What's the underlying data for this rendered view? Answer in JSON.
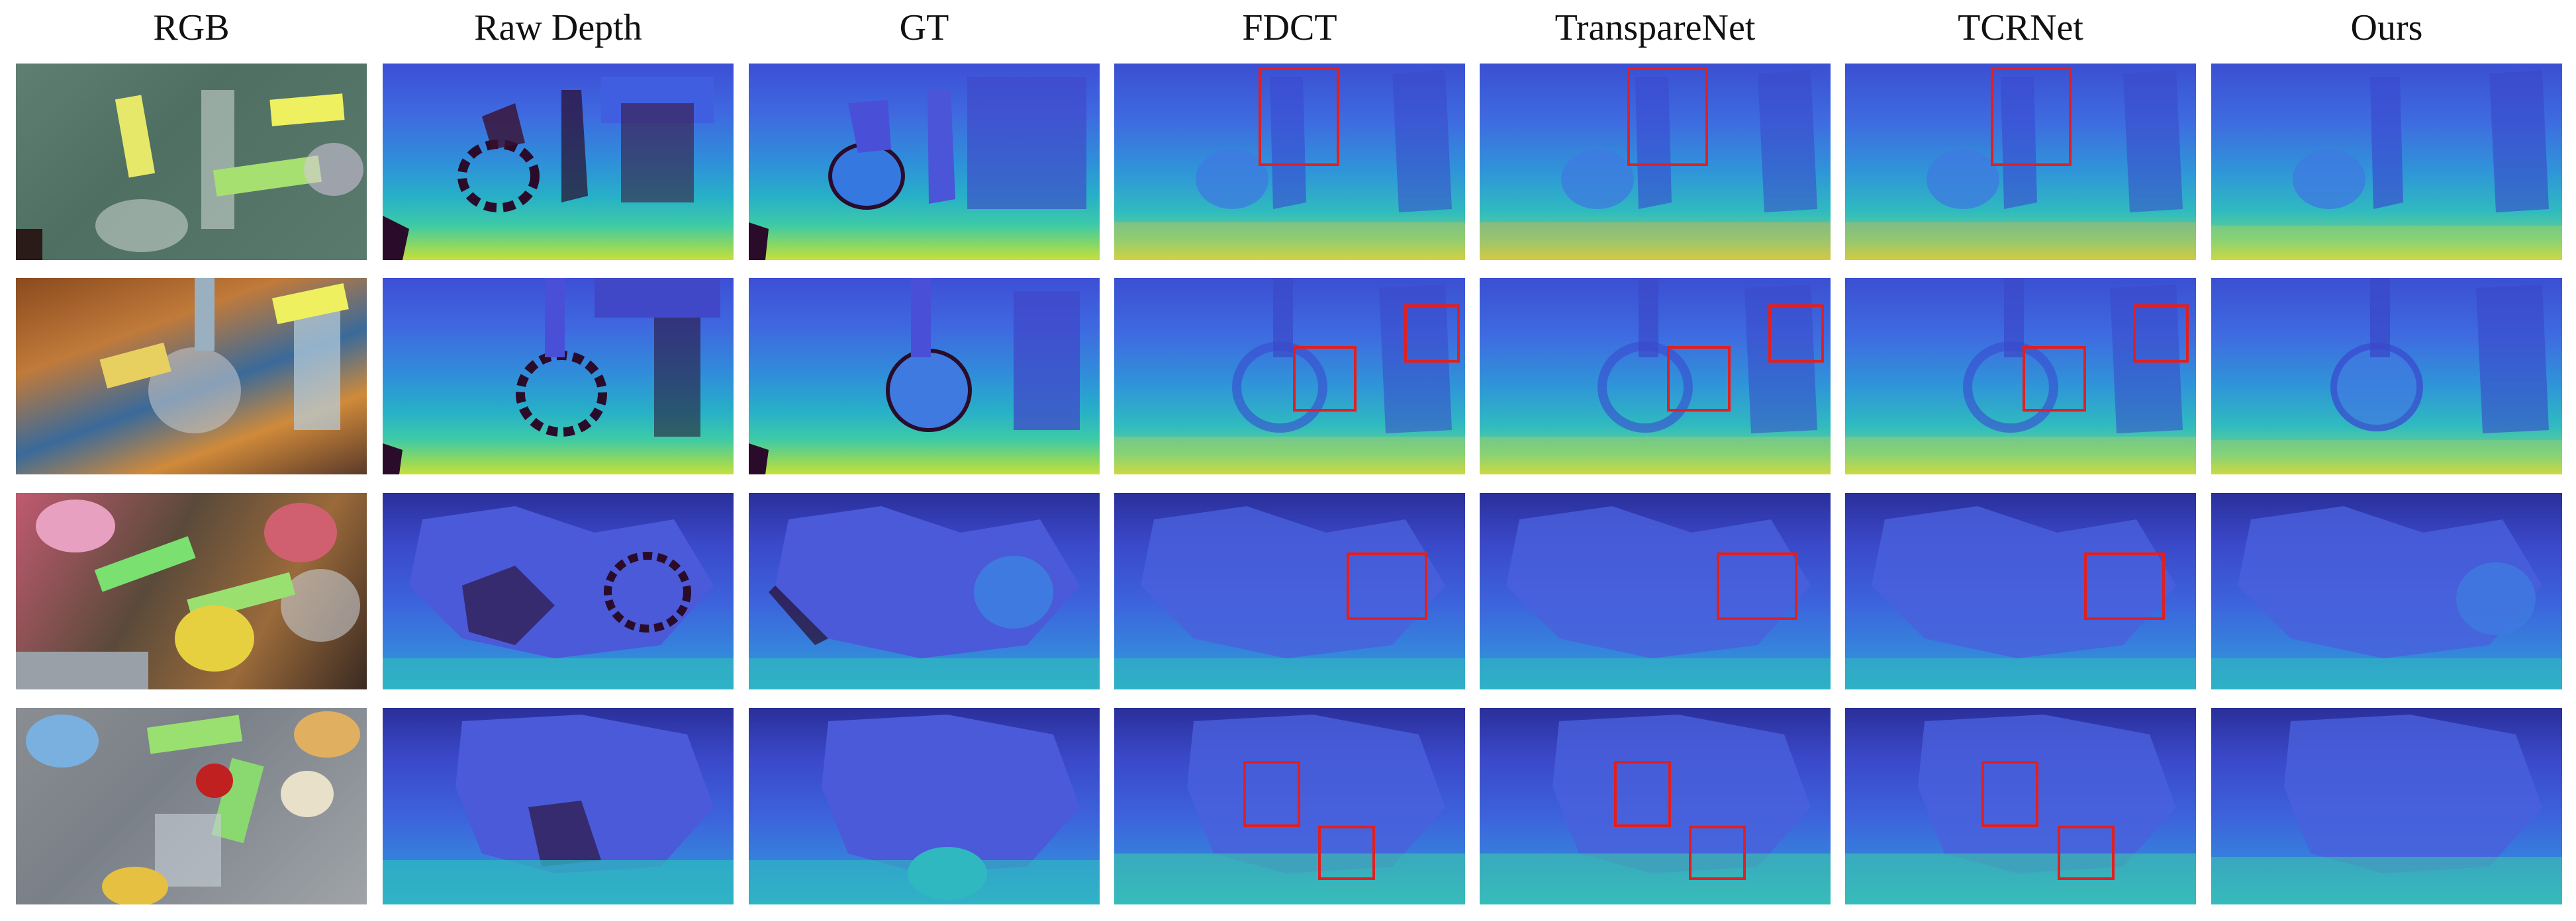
{
  "columns": [
    {
      "label": "RGB"
    },
    {
      "label": "Raw Depth"
    },
    {
      "label": "GT"
    },
    {
      "label": "FDCT"
    },
    {
      "label": "TranspareNet"
    },
    {
      "label": "TCRNet"
    },
    {
      "label": "Ours"
    }
  ],
  "rows": 4,
  "highlight_color": "#e02020"
}
